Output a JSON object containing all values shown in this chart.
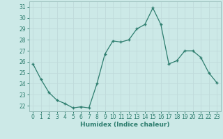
{
  "x": [
    0,
    1,
    2,
    3,
    4,
    5,
    6,
    7,
    8,
    9,
    10,
    11,
    12,
    13,
    14,
    15,
    16,
    17,
    18,
    19,
    20,
    21,
    22,
    23
  ],
  "y": [
    25.8,
    24.4,
    23.2,
    22.5,
    22.2,
    21.8,
    21.9,
    21.8,
    24.0,
    26.7,
    27.9,
    27.8,
    28.0,
    29.0,
    29.4,
    30.9,
    29.4,
    25.8,
    26.1,
    27.0,
    27.0,
    26.4,
    25.0,
    24.1
  ],
  "xlabel": "Humidex (Indice chaleur)",
  "ylim": [
    21.5,
    31.5
  ],
  "xlim": [
    -0.5,
    23.5
  ],
  "yticks": [
    22,
    23,
    24,
    25,
    26,
    27,
    28,
    29,
    30,
    31
  ],
  "xticks": [
    0,
    1,
    2,
    3,
    4,
    5,
    6,
    7,
    8,
    9,
    10,
    11,
    12,
    13,
    14,
    15,
    16,
    17,
    18,
    19,
    20,
    21,
    22,
    23
  ],
  "line_color": "#2d7d6e",
  "marker": "+",
  "bg_color": "#cce9e7",
  "grid_color": "#c0dada",
  "tick_color": "#2d7d6e",
  "label_color": "#2d7d6e",
  "spine_color": "#9bbfbc"
}
